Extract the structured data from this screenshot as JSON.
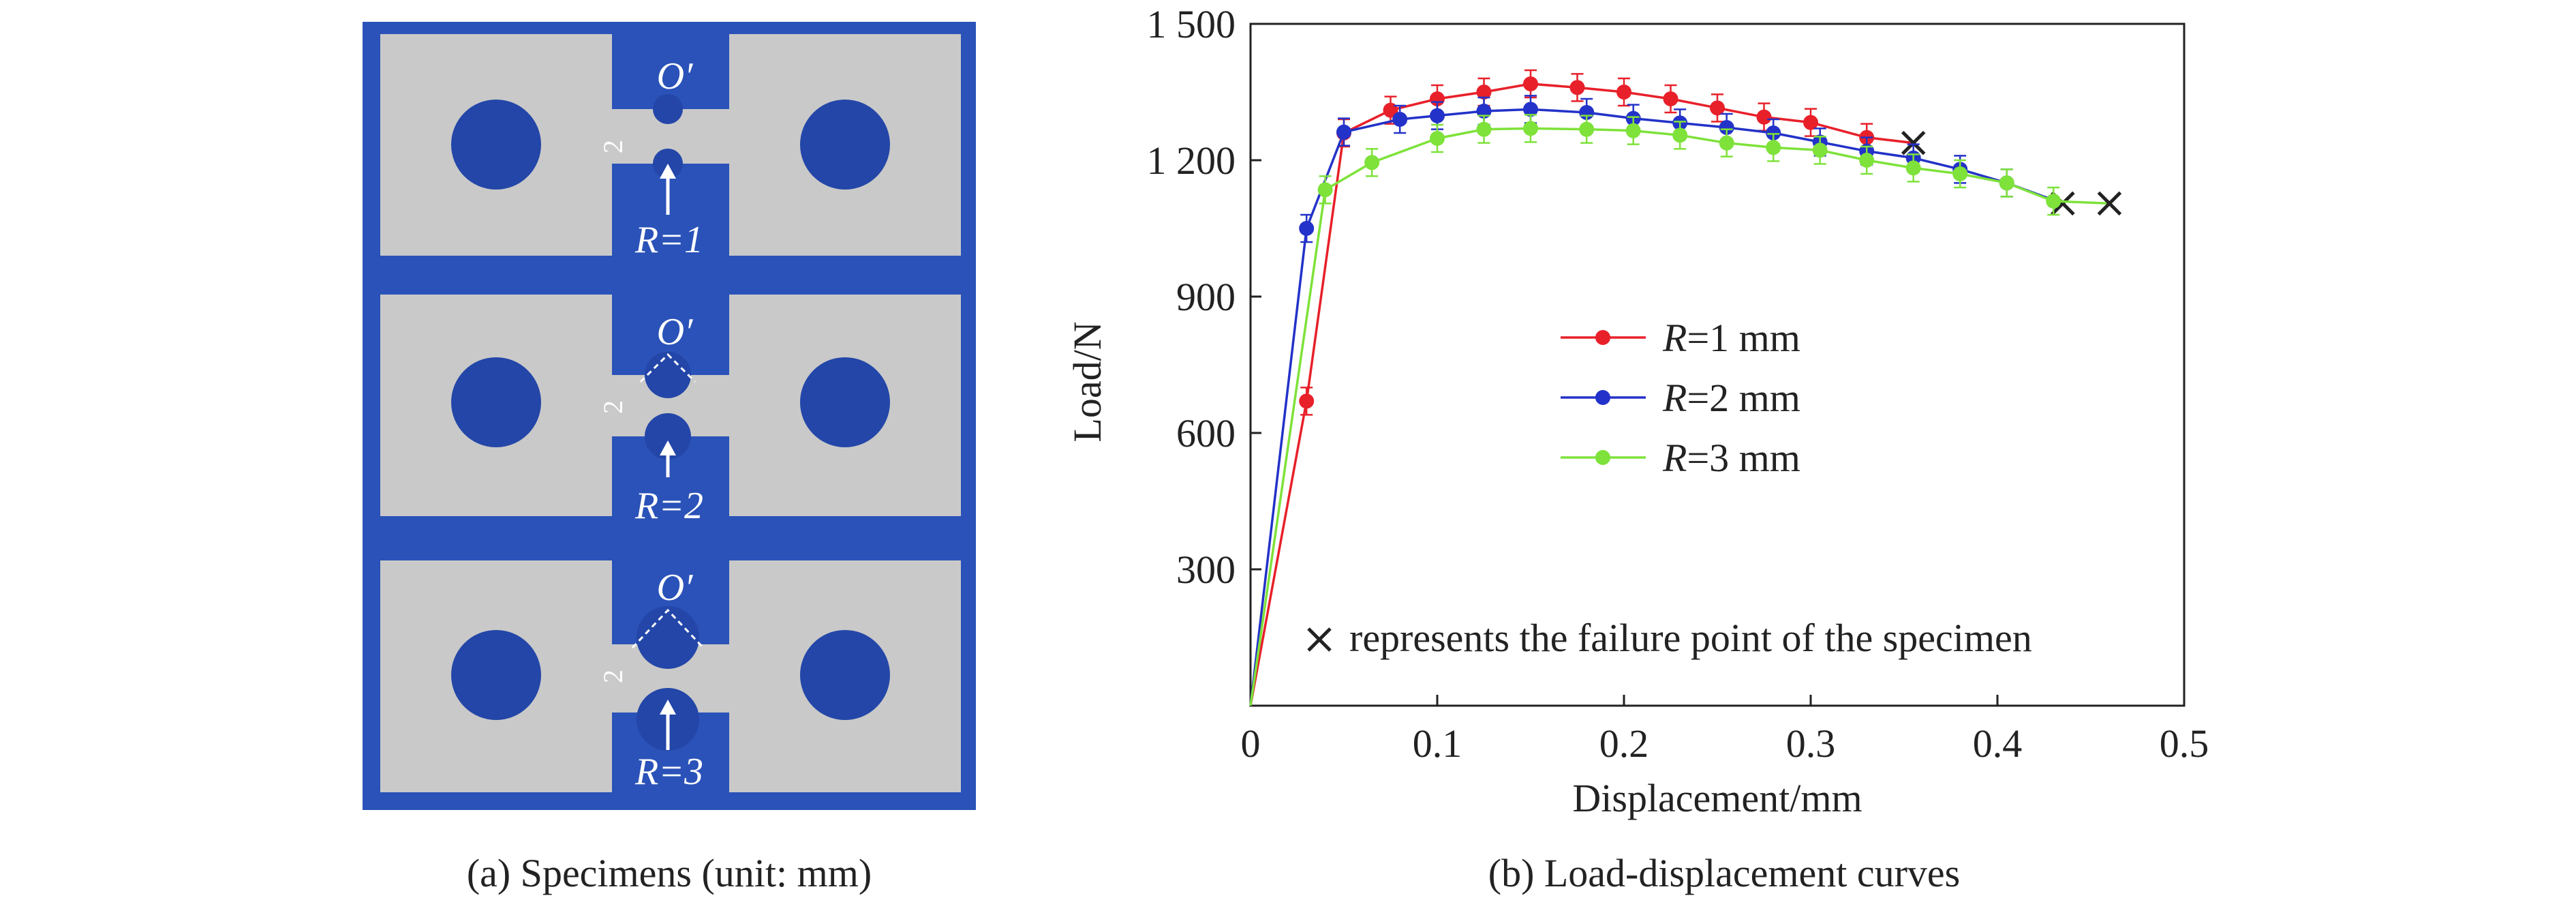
{
  "panel_a": {
    "caption": "(a) Specimens (unit: mm)",
    "specimens": [
      {
        "center_label": "O′",
        "dimension": "2",
        "radius_label": "R=1"
      },
      {
        "center_label": "O′",
        "dimension": "2",
        "radius_label": "R=2"
      },
      {
        "center_label": "O′",
        "dimension": "2",
        "radius_label": "R=3"
      }
    ],
    "colors": {
      "background": "#2a52b8",
      "plate": "#c9c9c9",
      "hole": "#2346a8"
    }
  },
  "panel_b": {
    "caption": "(b) Load-displacement curves",
    "failure_note": "represents the failure point of the specimen"
  },
  "chart_data": {
    "type": "line",
    "title": "",
    "xlabel": "Displacement/mm",
    "ylabel": "Load/N",
    "xlim": [
      0,
      0.5
    ],
    "ylim": [
      0,
      1500
    ],
    "xticks": [
      0,
      0.1,
      0.2,
      0.3,
      0.4,
      0.5
    ],
    "xtick_labels": [
      "0",
      "0.1",
      "0.2",
      "0.3",
      "0.4",
      "0.5"
    ],
    "yticks": [
      300,
      600,
      900,
      1200,
      1500
    ],
    "ytick_labels": [
      "300",
      "600",
      "900",
      "1 200",
      "1 500"
    ],
    "grid": false,
    "legend_position": "center",
    "series": [
      {
        "name": "R=1 mm",
        "legend_italic": "R",
        "legend_rest": "=1 mm",
        "color": "#e8202a",
        "x": [
          0,
          0.03,
          0.05,
          0.075,
          0.1,
          0.125,
          0.15,
          0.175,
          0.2,
          0.225,
          0.25,
          0.275,
          0.3,
          0.33,
          0.355
        ],
        "y": [
          0,
          670,
          1260,
          1310,
          1335,
          1350,
          1368,
          1360,
          1350,
          1335,
          1315,
          1295,
          1283,
          1250,
          1238
        ],
        "markers": [
          [
            0.03,
            670
          ],
          [
            0.05,
            1260
          ],
          [
            0.075,
            1310
          ],
          [
            0.1,
            1335
          ],
          [
            0.125,
            1350
          ],
          [
            0.15,
            1368
          ],
          [
            0.175,
            1360
          ],
          [
            0.2,
            1350
          ],
          [
            0.225,
            1335
          ],
          [
            0.25,
            1315
          ],
          [
            0.275,
            1295
          ],
          [
            0.3,
            1283
          ],
          [
            0.33,
            1250
          ]
        ],
        "failure": [
          0.355,
          1238
        ]
      },
      {
        "name": "R=2 mm",
        "legend_italic": "R",
        "legend_rest": "=2 mm",
        "color": "#2332c8",
        "x": [
          0,
          0.03,
          0.05,
          0.08,
          0.1,
          0.125,
          0.15,
          0.18,
          0.205,
          0.23,
          0.255,
          0.28,
          0.305,
          0.33,
          0.355,
          0.38,
          0.405,
          0.425,
          0.435
        ],
        "y": [
          0,
          1050,
          1262,
          1290,
          1298,
          1308,
          1312,
          1305,
          1292,
          1282,
          1272,
          1260,
          1240,
          1220,
          1205,
          1180,
          1150,
          1120,
          1105
        ],
        "markers": [
          [
            0.03,
            1050
          ],
          [
            0.05,
            1262
          ],
          [
            0.08,
            1290
          ],
          [
            0.1,
            1298
          ],
          [
            0.125,
            1308
          ],
          [
            0.15,
            1312
          ],
          [
            0.18,
            1305
          ],
          [
            0.205,
            1292
          ],
          [
            0.23,
            1282
          ],
          [
            0.255,
            1272
          ],
          [
            0.28,
            1260
          ],
          [
            0.305,
            1240
          ],
          [
            0.33,
            1220
          ],
          [
            0.355,
            1205
          ],
          [
            0.38,
            1180
          ],
          [
            0.405,
            1150
          ]
        ],
        "failure": [
          0.435,
          1105
        ]
      },
      {
        "name": "R=3 mm",
        "legend_italic": "R",
        "legend_rest": "=3 mm",
        "color": "#7ee23a",
        "x": [
          0,
          0.04,
          0.065,
          0.1,
          0.125,
          0.15,
          0.18,
          0.205,
          0.23,
          0.255,
          0.28,
          0.305,
          0.33,
          0.355,
          0.38,
          0.405,
          0.43,
          0.46
        ],
        "y": [
          0,
          1135,
          1195,
          1248,
          1268,
          1270,
          1268,
          1265,
          1255,
          1238,
          1228,
          1222,
          1200,
          1183,
          1170,
          1150,
          1110,
          1105
        ],
        "markers": [
          [
            0.04,
            1135
          ],
          [
            0.065,
            1195
          ],
          [
            0.1,
            1248
          ],
          [
            0.125,
            1268
          ],
          [
            0.15,
            1270
          ],
          [
            0.18,
            1268
          ],
          [
            0.205,
            1265
          ],
          [
            0.23,
            1255
          ],
          [
            0.255,
            1238
          ],
          [
            0.28,
            1228
          ],
          [
            0.305,
            1222
          ],
          [
            0.33,
            1200
          ],
          [
            0.355,
            1183
          ],
          [
            0.38,
            1170
          ],
          [
            0.405,
            1150
          ],
          [
            0.43,
            1110
          ]
        ],
        "failure": [
          0.46,
          1105
        ]
      }
    ]
  }
}
